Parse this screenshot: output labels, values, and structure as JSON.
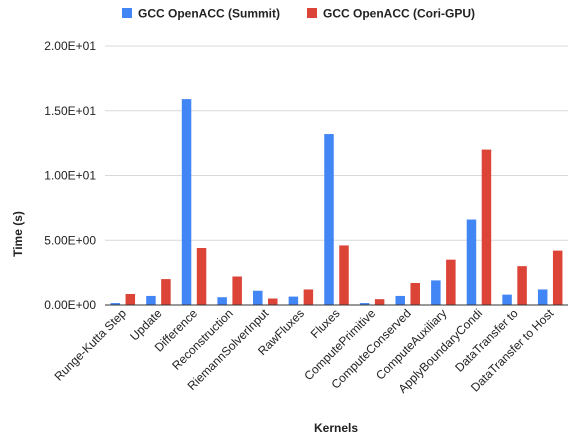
{
  "chart_data": {
    "type": "bar",
    "title": "",
    "xlabel": "Kernels",
    "ylabel": "Time (s)",
    "ylim": [
      0,
      20
    ],
    "yticks": [
      0,
      5,
      10,
      15,
      20
    ],
    "ytick_labels": [
      "0.00E+00",
      "5.00E+00",
      "1.00E+01",
      "1.50E+01",
      "2.00E+01"
    ],
    "grid": "horizontal",
    "legend_position": "top",
    "categories": [
      "Runge-Kutta Step",
      "Update",
      "Difference",
      "Reconstruction",
      "RiemannSolverInput",
      "RawFluxes",
      "Fluxes",
      "ComputePrimitive",
      "ComputeConserved",
      "ComputeAuxiliary",
      "ApplyBoundaryCondi",
      "DataTransfer to",
      "DataTransfer to Host"
    ],
    "series": [
      {
        "name": "GCC OpenACC (Summit)",
        "color": "#4285f4",
        "values": [
          0.15,
          0.7,
          15.9,
          0.6,
          1.1,
          0.65,
          13.2,
          0.15,
          0.7,
          1.9,
          6.6,
          0.8,
          1.2
        ]
      },
      {
        "name": "GCC OpenACC (Cori-GPU)",
        "color": "#db4437",
        "values": [
          0.85,
          2.0,
          4.4,
          2.2,
          0.5,
          1.2,
          4.6,
          0.45,
          1.7,
          3.5,
          12.0,
          3.0,
          4.2
        ]
      }
    ]
  }
}
